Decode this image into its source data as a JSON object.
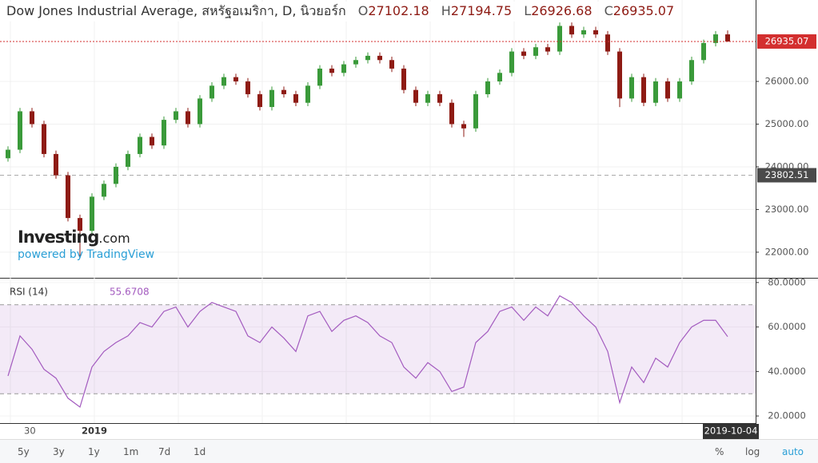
{
  "chart_data": [
    {
      "type": "candlestick",
      "title": "Dow Jones Industrial Average, สหรัฐอเมริกา, D, นิวยอร์ก",
      "ohlc_keys": [
        "O",
        "H",
        "L",
        "C"
      ],
      "open": [
        24200,
        24400,
        25300,
        25000,
        24300,
        23800,
        22800,
        22500,
        23300,
        23600,
        24000,
        24300,
        24700,
        24500,
        25100,
        25300,
        25000,
        25600,
        25900,
        26100,
        26000,
        25700,
        25400,
        25800,
        25700,
        25500,
        25900,
        26300,
        26200,
        26400,
        26500,
        26600,
        26500,
        26300,
        25800,
        25500,
        25700,
        25500,
        25000,
        24900,
        25700,
        26000,
        26200,
        26700,
        26600,
        26800,
        26700,
        27300,
        27100,
        27200,
        27100,
        26700,
        25600,
        26100,
        25500,
        26000,
        25600,
        26000,
        26500,
        26900,
        27102.18
      ],
      "high": [
        24480,
        25380,
        25380,
        25080,
        24380,
        23880,
        22880,
        23380,
        23680,
        24080,
        24380,
        24780,
        24780,
        25180,
        25380,
        25380,
        25680,
        25980,
        26180,
        26180,
        26080,
        25780,
        25880,
        25880,
        25780,
        25980,
        26380,
        26380,
        26480,
        26580,
        26680,
        26680,
        26580,
        26380,
        25880,
        25780,
        25780,
        25580,
        25080,
        25780,
        26080,
        26280,
        26780,
        26780,
        26880,
        26880,
        27380,
        27380,
        27280,
        27280,
        27180,
        26780,
        26180,
        26180,
        26080,
        26080,
        26080,
        26580,
        26980,
        27180,
        27194.75
      ],
      "low": [
        24120,
        24320,
        24920,
        24220,
        23720,
        22720,
        21900,
        22420,
        23220,
        23520,
        23920,
        24220,
        24420,
        24420,
        25020,
        24920,
        24920,
        25520,
        25820,
        25920,
        25620,
        25320,
        25320,
        25620,
        25420,
        25420,
        25820,
        26120,
        26120,
        26320,
        26420,
        26420,
        26220,
        25720,
        25420,
        25420,
        25420,
        24920,
        24700,
        24820,
        25620,
        25920,
        26120,
        26520,
        26520,
        26620,
        26620,
        27020,
        27020,
        27020,
        26620,
        25400,
        25520,
        25420,
        25420,
        25520,
        25520,
        25920,
        26420,
        26820,
        26926.68
      ],
      "close": [
        24400,
        25300,
        25000,
        24300,
        23800,
        22800,
        22500,
        23300,
        23600,
        24000,
        24300,
        24700,
        24500,
        25100,
        25300,
        25000,
        25600,
        25900,
        26100,
        26000,
        25700,
        25400,
        25800,
        25700,
        25500,
        25900,
        26300,
        26200,
        26400,
        26500,
        26600,
        26500,
        26300,
        25800,
        25500,
        25700,
        25500,
        25000,
        24900,
        25700,
        26000,
        26200,
        26700,
        26600,
        26800,
        26700,
        27300,
        27100,
        27200,
        27100,
        26700,
        25600,
        26100,
        25500,
        26000,
        25600,
        26000,
        26500,
        26900,
        27102.18,
        26935.07
      ],
      "up_color": "#3a9a3a",
      "down_color": "#8e1b14",
      "reference_line": 23802.51,
      "ylim": [
        21400,
        27907
      ],
      "yticks": [
        {
          "value": 22000,
          "label": "22000.00"
        },
        {
          "value": 23000,
          "label": "23000.00"
        },
        {
          "value": 24000,
          "label": "24000.00"
        },
        {
          "value": 25000,
          "label": "25000.00"
        },
        {
          "value": 26000,
          "label": "26000.00"
        }
      ],
      "x_labels": [
        "30",
        "2019",
        "2019-10-04"
      ],
      "grid": true
    },
    {
      "type": "line",
      "name": "RSI (14)",
      "values": [
        38,
        56,
        50,
        41,
        37,
        28,
        24,
        42,
        49,
        53,
        56,
        62,
        60,
        67,
        69,
        60,
        67,
        71,
        69,
        67,
        56,
        53,
        60,
        55,
        49,
        65,
        67,
        58,
        63,
        65,
        62,
        56,
        53,
        42,
        37,
        44,
        40,
        31,
        33,
        53,
        58,
        67,
        69,
        63,
        69,
        65,
        74,
        71,
        65,
        60,
        49,
        26,
        42,
        35,
        46,
        42,
        53,
        60,
        63,
        63,
        55.6708
      ],
      "color": "#a35bbf",
      "bands": [
        30,
        70
      ],
      "ylim": [
        16.8,
        81.4
      ],
      "yticks": [
        {
          "value": 20,
          "label": "20.0000"
        },
        {
          "value": 40,
          "label": "40.0000"
        },
        {
          "value": 60,
          "label": "60.0000"
        },
        {
          "value": 80,
          "label": "80.0000"
        }
      ],
      "grid": true
    }
  ],
  "watermark": {
    "brand": "Investing",
    "domain": ".com",
    "powered": "powered by TradingView"
  },
  "toolbar": {
    "ranges": [
      "5y",
      "3y",
      "1y",
      "1m",
      "7d",
      "1d"
    ],
    "options": [
      "%",
      "log",
      "auto"
    ]
  }
}
